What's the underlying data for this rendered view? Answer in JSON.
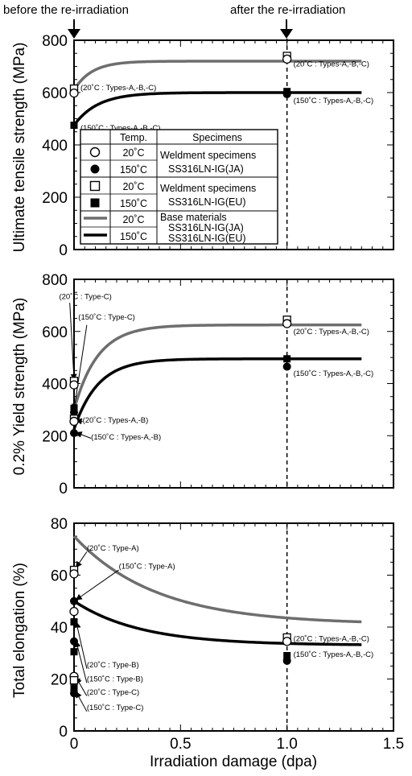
{
  "header": {
    "left": "before the re-irradiation",
    "right": "after the re-irradiation"
  },
  "xlabel": "Irradiation damage (dpa)",
  "legend": {
    "col_temp": "Temp.",
    "col_spec": "Specimens",
    "rows": [
      {
        "marker": "open-circle",
        "temp": "20˚C",
        "spec": "Weldment specimens"
      },
      {
        "marker": "filled-circle",
        "temp": "150˚C",
        "spec": "SS316LN-IG(JA)"
      },
      {
        "marker": "open-square",
        "temp": "20˚C",
        "spec": "Weldment specimens"
      },
      {
        "marker": "filled-square",
        "temp": "150˚C",
        "spec": "SS316LN-IG(EU)"
      },
      {
        "marker": "gray-line",
        "temp": "20˚C",
        "spec": "Base materials"
      },
      {
        "marker": "black-line",
        "temp": "150˚C",
        "spec": "SS316LN-IG(JA)"
      },
      {
        "marker": "",
        "temp": "",
        "spec": "SS316LN-IG(EU)"
      }
    ]
  },
  "colors": {
    "base20": "#6e6e6e",
    "base150": "#000000",
    "frame": "#000000"
  },
  "chart_data": [
    {
      "type": "line",
      "panel": "uts",
      "ylabel": "Ultimate tensile strength (MPa)",
      "xlim": [
        0,
        1.5
      ],
      "ylim": [
        0,
        800
      ],
      "xticks": [
        "0",
        "0.5",
        "1.0",
        "1.5"
      ],
      "yticks": [
        "0",
        "200",
        "400",
        "600",
        "800"
      ],
      "ytick_values": [
        0,
        200,
        400,
        600,
        800
      ],
      "reference_line_x": 1.0,
      "curves": [
        {
          "temp": "20˚C",
          "x0": 610,
          "sat": 720,
          "rate": 12,
          "x_end": 1.35,
          "color": "#6e6e6e"
        },
        {
          "temp": "150˚C",
          "x0": 475,
          "sat": 600,
          "rate": 9,
          "x_end": 1.35,
          "color": "#000000"
        }
      ],
      "points": [
        {
          "x": 0,
          "y": 615,
          "marker": "open-square"
        },
        {
          "x": 0,
          "y": 598,
          "marker": "open-circle"
        },
        {
          "x": 0,
          "y": 475,
          "marker": "filled-square"
        },
        {
          "x": 1.0,
          "y": 740,
          "marker": "open-square"
        },
        {
          "x": 1.0,
          "y": 728,
          "marker": "open-circle"
        },
        {
          "x": 1.0,
          "y": 604,
          "marker": "filled-square"
        },
        {
          "x": 1.0,
          "y": 594,
          "marker": "filled-circle"
        }
      ],
      "annotations": [
        {
          "text": "(20˚C : Types-A,-B,-C)",
          "x": 0.03,
          "y": 610
        },
        {
          "text": "(150˚C : Types-A,-B,-C)",
          "x": 0.03,
          "y": 455
        },
        {
          "text": "(20˚C : Types-A,-B,-C)",
          "x": 1.03,
          "y": 700
        },
        {
          "text": "(150˚C : Types-A,-B,-C)",
          "x": 1.03,
          "y": 560
        }
      ]
    },
    {
      "type": "line",
      "panel": "ys",
      "ylabel": "0.2% Yield strength (MPa)",
      "xlim": [
        0,
        1.5
      ],
      "ylim": [
        0,
        800
      ],
      "xticks": [
        "0",
        "0.5",
        "1.0",
        "1.5"
      ],
      "yticks": [
        "0",
        "200",
        "400",
        "600",
        "800"
      ],
      "ytick_values": [
        0,
        200,
        400,
        600,
        800
      ],
      "reference_line_x": 1.0,
      "curves": [
        {
          "temp": "20˚C",
          "x0": 300,
          "sat": 625,
          "rate": 9,
          "x_end": 1.35,
          "color": "#6e6e6e"
        },
        {
          "temp": "150˚C",
          "x0": 225,
          "sat": 495,
          "rate": 9,
          "x_end": 1.35,
          "color": "#000000"
        }
      ],
      "points": [
        {
          "x": 0,
          "y": 410,
          "marker": "open-square"
        },
        {
          "x": 0,
          "y": 395,
          "marker": "open-circle"
        },
        {
          "x": 0,
          "y": 305,
          "marker": "filled-square"
        },
        {
          "x": 0,
          "y": 290,
          "marker": "filled-circle"
        },
        {
          "x": 0,
          "y": 265,
          "marker": "open-square"
        },
        {
          "x": 0,
          "y": 255,
          "marker": "open-circle"
        },
        {
          "x": 0,
          "y": 210,
          "marker": "filled-circle"
        },
        {
          "x": 1.0,
          "y": 645,
          "marker": "open-square"
        },
        {
          "x": 1.0,
          "y": 630,
          "marker": "open-circle"
        },
        {
          "x": 1.0,
          "y": 495,
          "marker": "filled-square"
        },
        {
          "x": 1.0,
          "y": 465,
          "marker": "filled-circle"
        }
      ],
      "annotations": [
        {
          "text": "(20˚C : Type-C)",
          "x": -0.07,
          "y": 725
        },
        {
          "text": "(150˚C : Type-C)",
          "x": 0.02,
          "y": 645
        },
        {
          "text": "(20˚C : Types-A,-B)",
          "x": 0.04,
          "y": 250
        },
        {
          "text": "(150˚C : Types-A,-B)",
          "x": 0.08,
          "y": 185
        },
        {
          "text": "(20˚C : Types-A,-B,-C)",
          "x": 1.03,
          "y": 590
        },
        {
          "text": "(150˚C : Types-A,-B,-C)",
          "x": 1.03,
          "y": 430
        }
      ],
      "arrows": [
        {
          "from": [
            -0.02,
            710
          ],
          "to": [
            0,
            415
          ]
        },
        {
          "from": [
            0.06,
            625
          ],
          "to": [
            0,
            300
          ]
        },
        {
          "from": [
            0.04,
            255
          ],
          "to": [
            0.01,
            258
          ]
        },
        {
          "from": [
            0.08,
            190
          ],
          "to": [
            0.01,
            212
          ]
        }
      ]
    },
    {
      "type": "line",
      "panel": "el",
      "ylabel": "Total elongation (%)",
      "xlabel": "Irradiation damage (dpa)",
      "xlim": [
        0,
        1.5
      ],
      "ylim": [
        0,
        80
      ],
      "xticks": [
        "0",
        "0.5",
        "1.0",
        "1.5"
      ],
      "yticks": [
        "0",
        "20",
        "40",
        "60",
        "80"
      ],
      "ytick_values": [
        0,
        20,
        40,
        60,
        80
      ],
      "reference_line_x": 1.0,
      "curves": [
        {
          "temp": "20˚C",
          "x0": 75,
          "sat": 41,
          "rate": 2.6,
          "x_end": 1.35,
          "color": "#6e6e6e"
        },
        {
          "temp": "150˚C",
          "x0": 50,
          "sat": 33,
          "rate": 3.2,
          "x_end": 1.35,
          "color": "#000000"
        }
      ],
      "points": [
        {
          "x": 0,
          "y": 62,
          "marker": "open-square"
        },
        {
          "x": 0,
          "y": 60.5,
          "marker": "open-circle"
        },
        {
          "x": 0,
          "y": 50,
          "marker": "filled-circle"
        },
        {
          "x": 0,
          "y": 46,
          "marker": "open-circle"
        },
        {
          "x": 0,
          "y": 42,
          "marker": "filled-square"
        },
        {
          "x": 0,
          "y": 34.5,
          "marker": "filled-circle"
        },
        {
          "x": 0,
          "y": 30.5,
          "marker": "filled-square"
        },
        {
          "x": 0,
          "y": 21,
          "marker": "open-circle"
        },
        {
          "x": 0,
          "y": 19.5,
          "marker": "open-square"
        },
        {
          "x": 0,
          "y": 16.5,
          "marker": "filled-square"
        },
        {
          "x": 0,
          "y": 14.5,
          "marker": "filled-circle"
        },
        {
          "x": 1.0,
          "y": 36,
          "marker": "open-square"
        },
        {
          "x": 1.0,
          "y": 34.5,
          "marker": "open-circle"
        },
        {
          "x": 1.0,
          "y": 29,
          "marker": "filled-square"
        },
        {
          "x": 1.0,
          "y": 27,
          "marker": "filled-circle"
        }
      ],
      "annotations": [
        {
          "text": "(20˚C : Type-A)",
          "x": 0.06,
          "y": 69.5
        },
        {
          "text": "(150˚C : Type-A)",
          "x": 0.21,
          "y": 62.5
        },
        {
          "text": "(20˚C : Type-B)",
          "x": 0.06,
          "y": 24.5
        },
        {
          "text": "(150˚C : Type-B)",
          "x": 0.06,
          "y": 19
        },
        {
          "text": "(20˚C : Type-C)",
          "x": 0.06,
          "y": 14
        },
        {
          "text": "(150˚C : Type-C)",
          "x": 0.06,
          "y": 8
        },
        {
          "text": "(20˚C : Types-A,-B,-C)",
          "x": 1.03,
          "y": 34.5
        },
        {
          "text": "(150˚C : Types-A,-B,-C)",
          "x": 1.03,
          "y": 28.5
        }
      ],
      "arrows": [
        {
          "from": [
            0.06,
            69
          ],
          "to": [
            0.01,
            63
          ]
        },
        {
          "from": [
            0.21,
            62
          ],
          "to": [
            0.01,
            50.5
          ]
        },
        {
          "from": [
            0.06,
            24
          ],
          "to": [
            0.01,
            42
          ]
        },
        {
          "from": [
            0.06,
            18.5
          ],
          "to": [
            0.01,
            34.5
          ]
        },
        {
          "from": [
            0.06,
            13.5
          ],
          "to": [
            0.01,
            20.5
          ]
        },
        {
          "from": [
            0.06,
            7.5
          ],
          "to": [
            0.01,
            15
          ]
        }
      ]
    }
  ]
}
